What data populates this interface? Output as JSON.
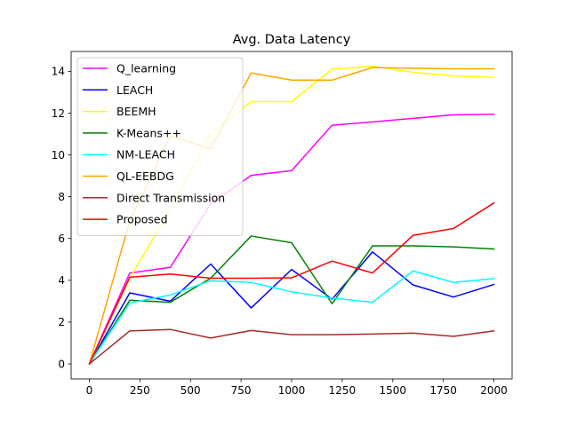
{
  "chart_data": {
    "type": "line",
    "title": "Avg. Data Latency",
    "xlabel": "",
    "ylabel": "",
    "xlim": [
      -90,
      2090
    ],
    "ylim": [
      -0.72,
      14.95
    ],
    "x_ticks": [
      0,
      250,
      500,
      750,
      1000,
      1250,
      1500,
      1750,
      2000
    ],
    "y_ticks": [
      0,
      2,
      4,
      6,
      8,
      10,
      12,
      14
    ],
    "grid": false,
    "legend_position": "upper-left",
    "x": [
      0,
      200,
      400,
      600,
      800,
      1000,
      1200,
      1400,
      1600,
      1800,
      2000
    ],
    "series": [
      {
        "name": "Q_learning",
        "color": "#ff00ff",
        "values": [
          0,
          4.35,
          4.62,
          7.65,
          9.02,
          9.25,
          11.42,
          11.58,
          11.75,
          11.92,
          11.95
        ]
      },
      {
        "name": "LEACH",
        "color": "#0000ff",
        "values": [
          0,
          3.4,
          3.0,
          4.78,
          2.68,
          4.52,
          3.1,
          5.36,
          3.78,
          3.2,
          3.8
        ]
      },
      {
        "name": "BEEMH",
        "color": "#ffff00",
        "values": [
          0,
          4.1,
          7.4,
          11.0,
          12.55,
          12.55,
          14.1,
          14.25,
          13.95,
          13.78,
          13.72
        ]
      },
      {
        "name": "K-Means++",
        "color": "#008000",
        "values": [
          0,
          3.05,
          2.95,
          4.1,
          6.12,
          5.8,
          2.88,
          5.65,
          5.65,
          5.6,
          5.5
        ]
      },
      {
        "name": "NM-LEACH",
        "color": "#00ffff",
        "values": [
          0,
          2.92,
          3.3,
          3.98,
          3.9,
          3.45,
          3.15,
          2.95,
          4.45,
          3.9,
          4.08
        ]
      },
      {
        "name": "QL-EEBDG",
        "color": "#ffa500",
        "values": [
          0,
          6.85,
          10.9,
          10.3,
          13.92,
          13.58,
          13.58,
          14.18,
          14.15,
          14.12,
          14.12
        ]
      },
      {
        "name": "Direct Transmission",
        "color": "#a52a2a",
        "values": [
          0,
          1.58,
          1.65,
          1.24,
          1.6,
          1.4,
          1.4,
          1.43,
          1.47,
          1.32,
          1.58
        ]
      },
      {
        "name": "Proposed",
        "color": "#ff0000",
        "values": [
          0,
          4.15,
          4.3,
          4.1,
          4.1,
          4.12,
          4.92,
          4.35,
          6.15,
          6.48,
          7.7
        ]
      }
    ]
  }
}
